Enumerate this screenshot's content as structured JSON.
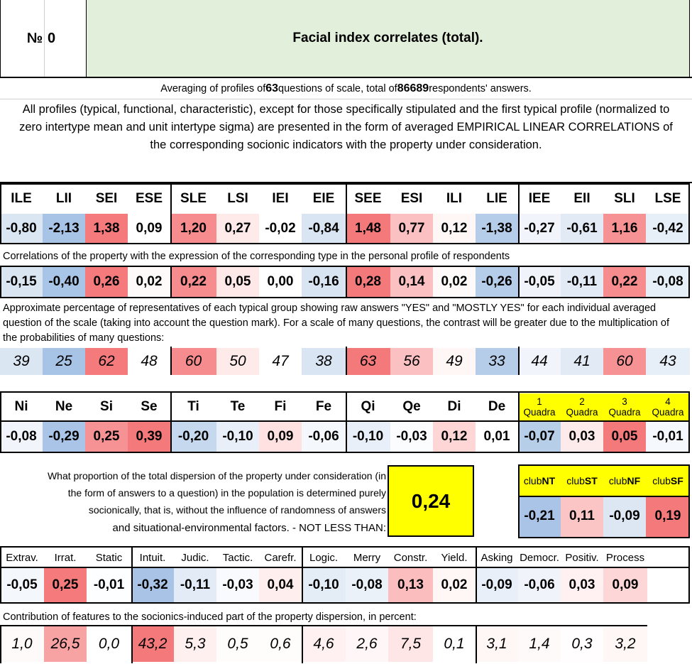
{
  "header": {
    "num_label": "№",
    "num_value": "0",
    "title": "Facial index correlates (total)."
  },
  "averaging": {
    "prefix": "Averaging of profiles of ",
    "questions": "63",
    "middle": " questions of scale, total of ",
    "respondents": "86689",
    "suffix": " respondents' answers."
  },
  "note": "All profiles (typical, functional, characteristic), except for those specifically stipulated and the first typical profile (normalized to zero intertype mean and unit intertype sigma) are presented in the form of averaged EMPIRICAL LINEAR CORRELATIONS of the corresponding socionic indicators with the property under consideration.",
  "types": {
    "headers": [
      "ILE",
      "LII",
      "SEI",
      "ESE",
      "SLE",
      "LSI",
      "IEI",
      "EIE",
      "SEE",
      "ESI",
      "ILI",
      "LIE",
      "IEE",
      "EII",
      "SLI",
      "LSE"
    ],
    "typical": [
      "-0,80",
      "-2,13",
      "1,38",
      "0,09",
      "1,20",
      "0,27",
      "-0,02",
      "-0,84",
      "1,48",
      "0,77",
      "0,12",
      "-1,38",
      "-0,27",
      "-0,61",
      "1,16",
      "-0,42"
    ],
    "typical_colors": [
      "#dbe6f3",
      "#a7c3e6",
      "#f47a7c",
      "#ffffff",
      "#f68c8e",
      "#ffeaea",
      "#ffffff",
      "#d9e5f2",
      "#f4797b",
      "#fbc0c1",
      "#fff6f6",
      "#b5cde9",
      "#f1f5fb",
      "#e2eaf5",
      "#f69294",
      "#e6eef7"
    ],
    "caption_correlation": "Correlations of the property with the expression of the corresponding type in the personal profile of respondents",
    "correlation": [
      "-0,15",
      "-0,40",
      "0,26",
      "0,02",
      "0,22",
      "0,05",
      "0,00",
      "-0,16",
      "0,28",
      "0,14",
      "0,02",
      "-0,26",
      "-0,05",
      "-0,11",
      "0,22",
      "-0,08"
    ],
    "correlation_colors": [
      "#dae5f2",
      "#a8c4e6",
      "#f47a7c",
      "#fffafa",
      "#f68c8e",
      "#ffe8e8",
      "#ffffff",
      "#d8e4f2",
      "#f4797b",
      "#fbc0c1",
      "#fffafa",
      "#b6cde9",
      "#f0f4fa",
      "#e2eaf5",
      "#f68c8e",
      "#e6eef7"
    ],
    "caption_percentage": "Approximate percentage of representatives of each typical group showing raw answers \"YES\" and \"MOSTLY YES\" for each individual averaged question of the scale (taking into account the question mark). For a scale of many questions, the contrast will be greater due to the multiplication of the probabilities of many questions:",
    "percentage": [
      "39",
      "25",
      "62",
      "48",
      "60",
      "50",
      "47",
      "38",
      "63",
      "56",
      "49",
      "33",
      "44",
      "41",
      "60",
      "43"
    ],
    "percentage_colors": [
      "#dbe6f3",
      "#a7c3e6",
      "#f47a7c",
      "#ffffff",
      "#f68c8e",
      "#ffeaea",
      "#ffffff",
      "#d9e5f2",
      "#f4797b",
      "#fbc0c1",
      "#fff6f6",
      "#b5cde9",
      "#f1f5fb",
      "#e2eaf5",
      "#f69294",
      "#e6eef7"
    ]
  },
  "functions": {
    "headers": [
      "Ni",
      "Ne",
      "Si",
      "Se",
      "Ti",
      "Te",
      "Fi",
      "Fe",
      "Qi",
      "Qe",
      "Di",
      "De"
    ],
    "values": [
      "-0,08",
      "-0,29",
      "0,25",
      "0,39",
      "-0,20",
      "-0,10",
      "0,09",
      "-0,06",
      "-0,10",
      "-0,03",
      "0,12",
      "0,01"
    ],
    "colors": [
      "#f1f5fb",
      "#a9c4e6",
      "#f69294",
      "#f4797b",
      "#c6d8ee",
      "#e8eff8",
      "#ffe1e1",
      "#f4f7fb",
      "#e8eff8",
      "#fafcfe",
      "#ffd6d6",
      "#ffffff"
    ]
  },
  "quadras": {
    "headers": [
      {
        "num": "1",
        "label": "Quadra"
      },
      {
        "num": "2",
        "label": "Quadra"
      },
      {
        "num": "3",
        "label": "Quadra"
      },
      {
        "num": "4",
        "label": "Quadra"
      }
    ],
    "values": [
      "-0,07",
      "0,03",
      "0,05",
      "-0,01"
    ],
    "colors": [
      "#b7cee9",
      "#fdeaea",
      "#f4797b",
      "#f5f8fc"
    ],
    "header_bg": "#ffff00"
  },
  "dispersion": {
    "text": "What proportion of the total dispersion of the property under consideration (in the form of answers to a question) in the population is determined purely socionically, that is, without the influence of randomness of answers",
    "text_last": "and situational-environmental factors. - NOT LESS THAN:",
    "value": "0,24"
  },
  "clubs": {
    "headers": [
      {
        "prefix": "club",
        "bold": "NT"
      },
      {
        "prefix": "club",
        "bold": "ST"
      },
      {
        "prefix": "club",
        "bold": "NF"
      },
      {
        "prefix": "club",
        "bold": "SF"
      }
    ],
    "values": [
      "-0,21",
      "0,11",
      "-0,09",
      "0,19"
    ],
    "colors": [
      "#a9c4e6",
      "#fbc5c6",
      "#dde7f4",
      "#f4797b"
    ],
    "header_bg": "#ffff00"
  },
  "features": {
    "headers": [
      "Extrav.",
      "Irrat.",
      "Static",
      "Intuit.",
      "Judic.",
      "Tactic.",
      "Carefr.",
      "Logic.",
      "Merry",
      "Constr.",
      "Yield.",
      "Asking",
      "Democr.",
      "Positiv.",
      "Process"
    ],
    "values": [
      "-0,05",
      "0,25",
      "-0,01",
      "-0,32",
      "-0,11",
      "-0,03",
      "0,04",
      "-0,10",
      "-0,08",
      "0,13",
      "0,02",
      "-0,09",
      "-0,06",
      "0,03",
      "0,09"
    ],
    "colors": [
      "#f4f7fb",
      "#f47a7c",
      "#fdfeff",
      "#a8c3e6",
      "#e3ebf6",
      "#f8fafd",
      "#ffeeee",
      "#e4ecf6",
      "#ebf1f9",
      "#fbbdbe",
      "#fff6f6",
      "#e8eff8",
      "#f0f4fa",
      "#fff1f1",
      "#fdd7d8"
    ],
    "caption": "Contribution of features to the sociоnics-induced part of the property dispersion, in percent:",
    "percent": [
      "1,0",
      "26,5",
      "0,0",
      "43,2",
      "5,3",
      "0,5",
      "0,6",
      "4,6",
      "2,6",
      "7,5",
      "0,1",
      "3,1",
      "1,4",
      "0,3",
      "3,2"
    ],
    "percent_colors": [
      "#fffafa",
      "#f7a2a3",
      "#ffffff",
      "#f4797b",
      "#fff0f0",
      "#fffcfc",
      "#fffcfc",
      "#fff1f1",
      "#fff7f7",
      "#ffe6e6",
      "#ffffff",
      "#fff6f6",
      "#fffafa",
      "#fffdfd",
      "#fff6f6"
    ]
  }
}
